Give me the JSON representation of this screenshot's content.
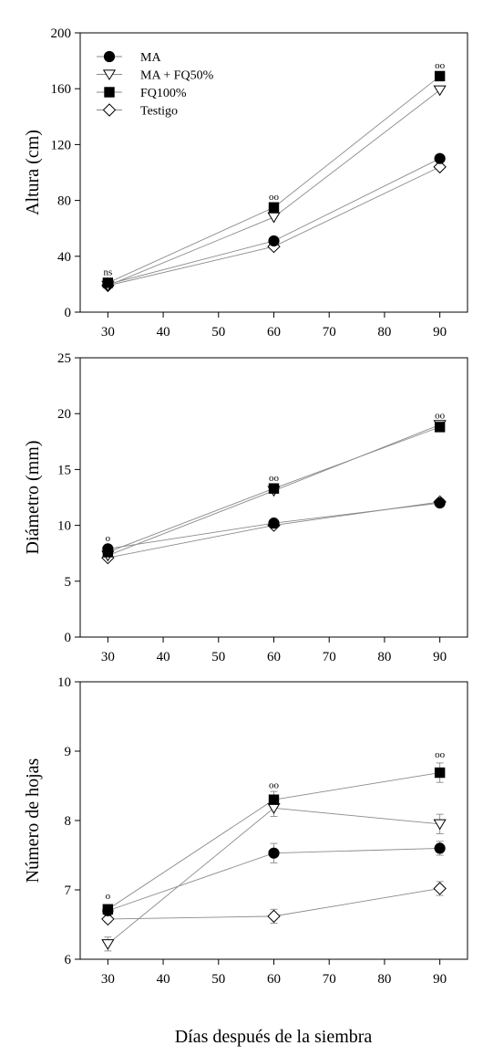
{
  "chart_data": [
    {
      "type": "line",
      "ylabel": "Altura (cm)",
      "xlabel": "",
      "x": [
        30,
        60,
        90
      ],
      "xlim": [
        25,
        95
      ],
      "ylim": [
        0,
        200
      ],
      "xticks": [
        "30",
        "40",
        "50",
        "60",
        "70",
        "80",
        "90"
      ],
      "yticks": [
        "0",
        "40",
        "80",
        "120",
        "160",
        "200"
      ],
      "grid": false,
      "legend_position": "top-left",
      "series": [
        {
          "name": "MA",
          "values": [
            20,
            51,
            110
          ],
          "marker": "circle-filled"
        },
        {
          "name": "MA + FQ50%",
          "values": [
            19,
            68,
            159
          ],
          "marker": "triangle-down-open"
        },
        {
          "name": "FQ100%",
          "values": [
            21,
            75,
            169
          ],
          "marker": "square-filled"
        },
        {
          "name": "Testigo",
          "values": [
            19,
            47,
            104
          ],
          "marker": "diamond-open"
        }
      ],
      "annotations": [
        {
          "x": 30,
          "y": 29,
          "text": "ns"
        },
        {
          "x": 60,
          "y": 83,
          "text": "oo"
        },
        {
          "x": 90,
          "y": 177,
          "text": "oo"
        }
      ]
    },
    {
      "type": "line",
      "ylabel": "Diámetro (mm)",
      "xlabel": "",
      "x": [
        30,
        60,
        90
      ],
      "xlim": [
        25,
        95
      ],
      "ylim": [
        0,
        25
      ],
      "xticks": [
        "30",
        "40",
        "50",
        "60",
        "70",
        "80",
        "90"
      ],
      "yticks": [
        "0",
        "5",
        "10",
        "15",
        "20",
        "25"
      ],
      "grid": false,
      "series": [
        {
          "name": "MA",
          "values": [
            7.9,
            10.2,
            12.0
          ],
          "marker": "circle-filled"
        },
        {
          "name": "MA + FQ50%",
          "values": [
            7.3,
            13.1,
            19.0
          ],
          "marker": "triangle-down-open"
        },
        {
          "name": "FQ100%",
          "values": [
            7.6,
            13.3,
            18.8
          ],
          "marker": "square-filled"
        },
        {
          "name": "Testigo",
          "values": [
            7.1,
            10.0,
            12.1
          ],
          "marker": "diamond-open"
        }
      ],
      "annotations": [
        {
          "x": 30,
          "y": 8.9,
          "text": "o"
        },
        {
          "x": 60,
          "y": 14.3,
          "text": "oo"
        },
        {
          "x": 90,
          "y": 19.9,
          "text": "oo"
        }
      ]
    },
    {
      "type": "line",
      "ylabel": "Número de hojas",
      "xlabel": "Días después de la siembra",
      "x": [
        30,
        60,
        90
      ],
      "xlim": [
        25,
        95
      ],
      "ylim": [
        6,
        10
      ],
      "xticks": [
        "30",
        "40",
        "50",
        "60",
        "70",
        "80",
        "90"
      ],
      "yticks": [
        "6",
        "7",
        "8",
        "9",
        "10"
      ],
      "grid": false,
      "series": [
        {
          "name": "MA",
          "values": [
            6.7,
            7.53,
            7.6
          ],
          "errors": [
            0.05,
            0.14,
            0.1
          ],
          "marker": "circle-filled"
        },
        {
          "name": "MA + FQ50%",
          "values": [
            6.22,
            8.18,
            7.95
          ],
          "errors": [
            0.1,
            0.12,
            0.14
          ],
          "marker": "triangle-down-open"
        },
        {
          "name": "FQ100%",
          "values": [
            6.72,
            8.3,
            8.69
          ],
          "errors": [
            0.04,
            0.12,
            0.14
          ],
          "marker": "square-filled"
        },
        {
          "name": "Testigo",
          "values": [
            6.58,
            6.62,
            7.02
          ],
          "errors": [
            0.05,
            0.1,
            0.1
          ],
          "marker": "diamond-open"
        }
      ],
      "annotations": [
        {
          "x": 30,
          "y": 6.92,
          "text": "o"
        },
        {
          "x": 60,
          "y": 8.52,
          "text": "oo"
        },
        {
          "x": 90,
          "y": 8.96,
          "text": "oo"
        }
      ]
    }
  ]
}
